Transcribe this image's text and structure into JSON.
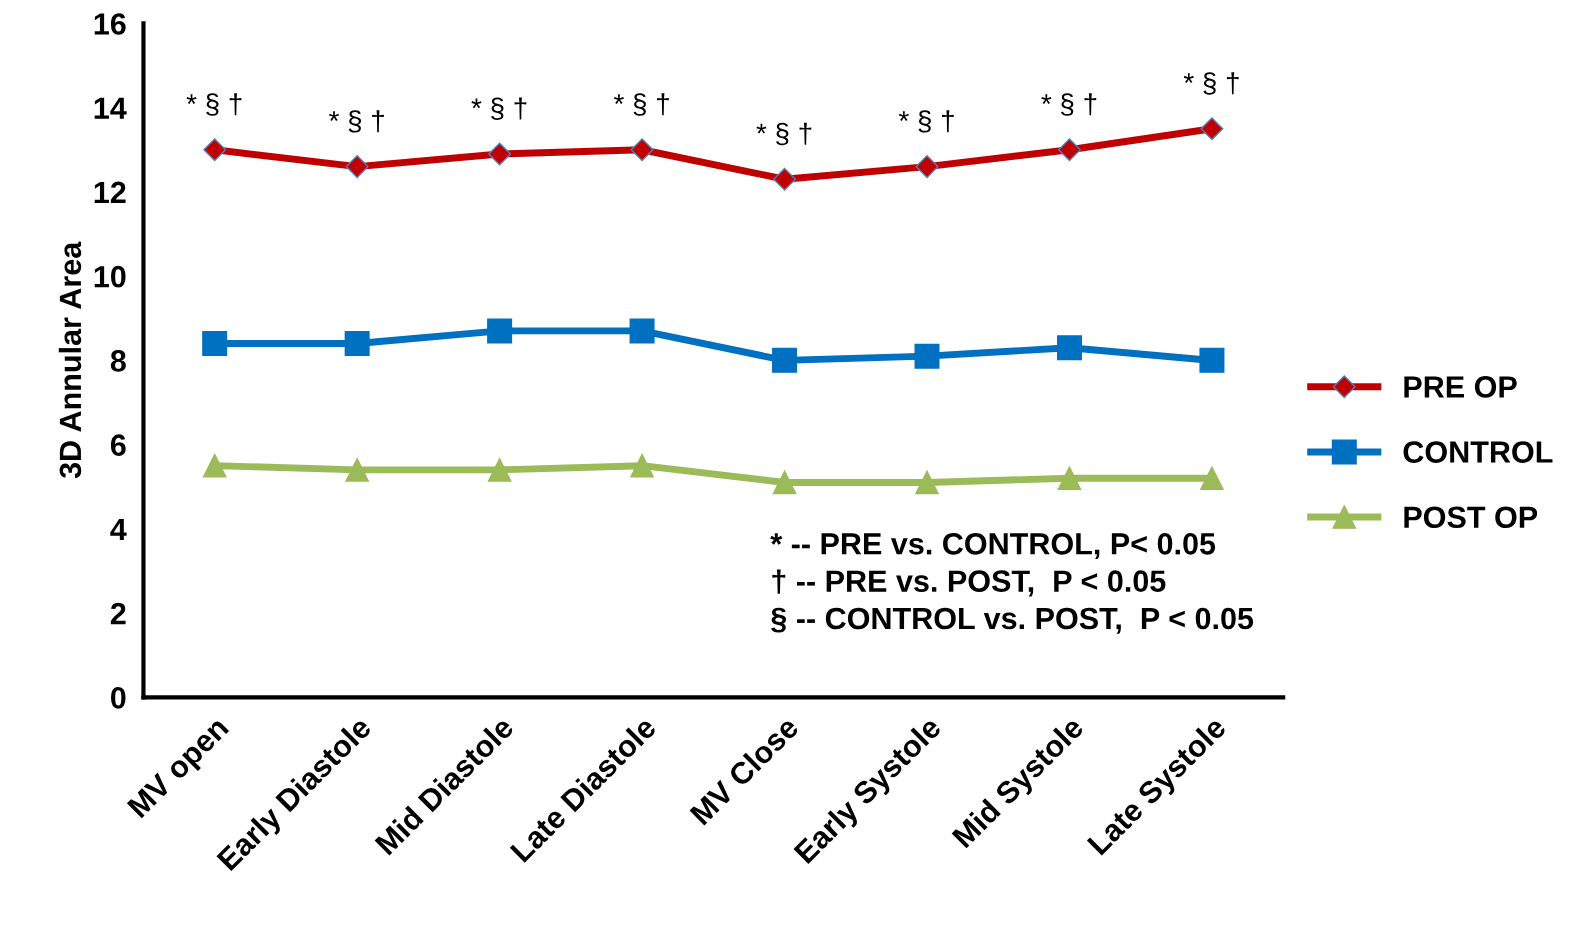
{
  "chart_data": {
    "type": "line",
    "ylabel": "3D Annular Area",
    "categories": [
      "MV open",
      "Early Diastole",
      "Mid Diastole",
      "Late Diastole",
      "MV Close",
      "Early Systole",
      "Mid Systole",
      "Late Systole"
    ],
    "series": [
      {
        "name": "PRE OP",
        "color": "#c00000",
        "marker": "diamond",
        "values": [
          13.0,
          12.6,
          12.9,
          13.0,
          12.3,
          12.6,
          13.0,
          13.5
        ]
      },
      {
        "name": "CONTROL",
        "color": "#0070c0",
        "marker": "square",
        "values": [
          8.4,
          8.4,
          8.7,
          8.7,
          8.0,
          8.1,
          8.3,
          8.0
        ]
      },
      {
        "name": "POST OP",
        "color": "#9bbb59",
        "marker": "triangle",
        "values": [
          5.5,
          5.4,
          5.4,
          5.5,
          5.1,
          5.1,
          5.2,
          5.2
        ]
      }
    ],
    "ylim": [
      0,
      16
    ],
    "yticks": [
      0,
      2,
      4,
      6,
      8,
      10,
      12,
      14,
      16
    ],
    "grid": false,
    "legend": "right",
    "line_style": "solid",
    "annotations": [
      {
        "text": "* § †",
        "x": "MV open",
        "y": 13.0
      },
      {
        "text": "* § †",
        "x": "Early Diastole",
        "y": 12.6
      },
      {
        "text": "* § †",
        "x": "Mid Diastole",
        "y": 12.9
      },
      {
        "text": "* § †",
        "x": "Late Diastole",
        "y": 13.0
      },
      {
        "text": "* § †",
        "x": "MV Close",
        "y": 12.3
      },
      {
        "text": "* § †",
        "x": "Early Systole",
        "y": 12.6
      },
      {
        "text": "* § †",
        "x": "Mid Systole",
        "y": 13.0
      },
      {
        "text": "* § †",
        "x": "Late Systole",
        "y": 13.5
      },
      "* -- PRE vs. CONTROL, P< 0.05",
      "† -- PRE vs. POST,  P < 0.05",
      "§ -- CONTROL vs. POST,  P < 0.05"
    ]
  }
}
